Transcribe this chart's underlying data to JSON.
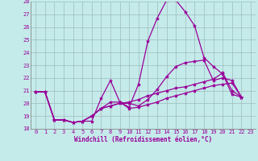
{
  "xlabel": "Windchill (Refroidissement éolien,°C)",
  "xlim_min": -0.5,
  "xlim_max": 23.5,
  "ylim_min": 18,
  "ylim_max": 28,
  "xticks": [
    0,
    1,
    2,
    3,
    4,
    5,
    6,
    7,
    8,
    9,
    10,
    11,
    12,
    13,
    14,
    15,
    16,
    17,
    18,
    19,
    20,
    21,
    22,
    23
  ],
  "yticks": [
    18,
    19,
    20,
    21,
    22,
    23,
    24,
    25,
    26,
    27,
    28
  ],
  "background_color": "#c5eaea",
  "grid_color": "#9dbcbc",
  "line_color": "#990099",
  "tick_label_color": "#990099",
  "xlabel_color": "#990099",
  "tick_fontsize": 5.0,
  "xlabel_fontsize": 5.5,
  "line_width": 0.9,
  "marker": "*",
  "marker_size": 3.0,
  "series": [
    [
      20.9,
      20.9,
      18.7,
      18.7,
      18.5,
      18.6,
      18.6,
      20.4,
      21.8,
      20.1,
      19.7,
      21.5,
      24.9,
      26.7,
      28.1,
      28.1,
      27.2,
      26.1,
      23.6,
      22.9,
      22.3,
      20.7,
      20.5
    ],
    [
      20.9,
      20.9,
      18.7,
      18.7,
      18.5,
      18.6,
      19.0,
      19.6,
      19.8,
      20.0,
      20.1,
      20.3,
      20.6,
      20.8,
      21.0,
      21.2,
      21.3,
      21.5,
      21.7,
      21.9,
      22.4,
      21.0,
      20.5
    ],
    [
      20.9,
      20.9,
      18.7,
      18.7,
      18.5,
      18.6,
      19.0,
      19.6,
      19.8,
      20.0,
      20.0,
      19.8,
      20.3,
      21.1,
      22.1,
      22.9,
      23.2,
      23.3,
      23.4,
      21.8,
      22.0,
      21.8,
      20.5
    ],
    [
      20.9,
      20.9,
      18.7,
      18.7,
      18.5,
      18.6,
      19.0,
      19.6,
      20.1,
      20.1,
      19.6,
      19.7,
      19.9,
      20.1,
      20.4,
      20.6,
      20.8,
      21.0,
      21.2,
      21.4,
      21.5,
      21.6,
      20.5
    ]
  ]
}
